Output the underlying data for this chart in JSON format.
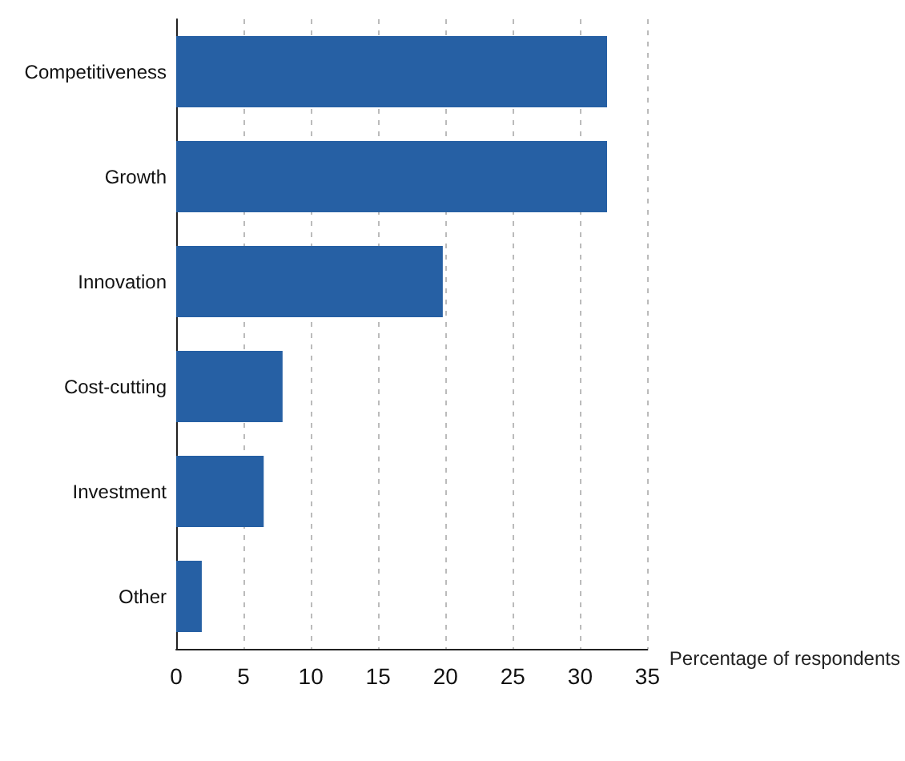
{
  "chart_data": {
    "type": "bar",
    "orientation": "horizontal",
    "xlabel": "Percentage of respondents",
    "categories": [
      "Competitiveness",
      "Growth",
      "Innovation",
      "Cost-cutting",
      "Investment",
      "Other"
    ],
    "values": [
      32,
      32,
      19.8,
      7.9,
      6.5,
      1.9
    ],
    "color": "#2660a4",
    "xlim": [
      0,
      35
    ],
    "xticks": [
      0,
      5,
      10,
      15,
      20,
      25,
      30,
      35
    ],
    "grid": "x"
  }
}
